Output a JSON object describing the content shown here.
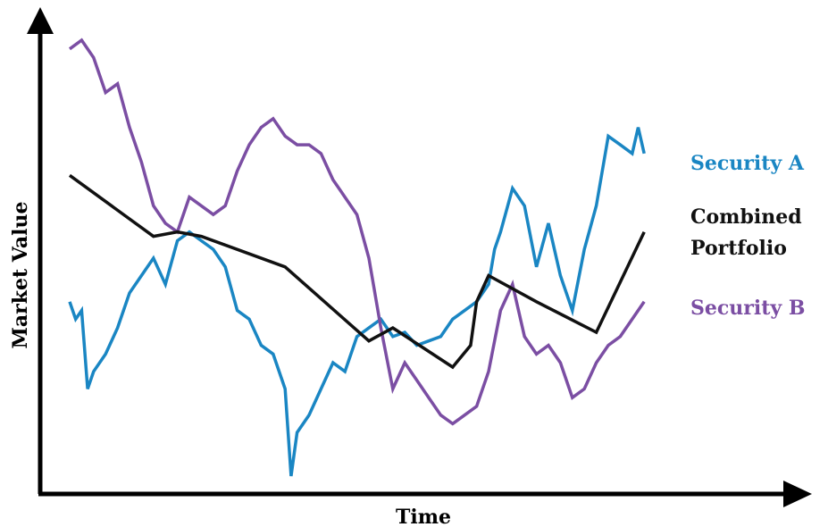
{
  "chart_data": {
    "type": "line",
    "title": "",
    "xlabel": "Time",
    "ylabel": "Market Value",
    "ticks": "none",
    "grid": false,
    "legend_placement": "right",
    "xlim": [
      0,
      100
    ],
    "ylim": [
      0,
      100
    ],
    "series": [
      {
        "name": "Security A",
        "color": "#1a86c3",
        "points": [
          [
            0,
            40
          ],
          [
            1,
            36
          ],
          [
            2,
            38
          ],
          [
            3,
            20
          ],
          [
            4,
            24
          ],
          [
            6,
            28
          ],
          [
            8,
            34
          ],
          [
            10,
            42
          ],
          [
            12,
            46
          ],
          [
            14,
            50
          ],
          [
            16,
            44
          ],
          [
            18,
            54
          ],
          [
            20,
            56
          ],
          [
            22,
            54
          ],
          [
            24,
            52
          ],
          [
            26,
            48
          ],
          [
            28,
            38
          ],
          [
            30,
            36
          ],
          [
            32,
            30
          ],
          [
            34,
            28
          ],
          [
            36,
            20
          ],
          [
            37,
            0
          ],
          [
            38,
            10
          ],
          [
            40,
            14
          ],
          [
            42,
            20
          ],
          [
            44,
            26
          ],
          [
            46,
            24
          ],
          [
            48,
            32
          ],
          [
            50,
            34
          ],
          [
            52,
            36
          ],
          [
            54,
            32
          ],
          [
            56,
            33
          ],
          [
            58,
            30
          ],
          [
            60,
            31
          ],
          [
            62,
            32
          ],
          [
            64,
            36
          ],
          [
            66,
            38
          ],
          [
            68,
            40
          ],
          [
            70,
            44
          ],
          [
            71,
            52
          ],
          [
            72,
            56
          ],
          [
            74,
            66
          ],
          [
            76,
            62
          ],
          [
            78,
            48
          ],
          [
            80,
            58
          ],
          [
            82,
            46
          ],
          [
            84,
            38
          ],
          [
            86,
            52
          ],
          [
            88,
            62
          ],
          [
            90,
            78
          ],
          [
            92,
            76
          ],
          [
            94,
            74
          ],
          [
            95,
            80
          ],
          [
            96,
            74
          ]
        ]
      },
      {
        "name": "Security B",
        "color": "#7b4ea3",
        "points": [
          [
            0,
            98
          ],
          [
            2,
            100
          ],
          [
            4,
            96
          ],
          [
            6,
            88
          ],
          [
            8,
            90
          ],
          [
            10,
            80
          ],
          [
            12,
            72
          ],
          [
            14,
            62
          ],
          [
            16,
            58
          ],
          [
            18,
            56
          ],
          [
            20,
            64
          ],
          [
            22,
            62
          ],
          [
            24,
            60
          ],
          [
            26,
            62
          ],
          [
            28,
            70
          ],
          [
            30,
            76
          ],
          [
            32,
            80
          ],
          [
            34,
            82
          ],
          [
            36,
            78
          ],
          [
            38,
            76
          ],
          [
            40,
            76
          ],
          [
            42,
            74
          ],
          [
            44,
            68
          ],
          [
            46,
            64
          ],
          [
            48,
            60
          ],
          [
            50,
            50
          ],
          [
            52,
            34
          ],
          [
            54,
            20
          ],
          [
            56,
            26
          ],
          [
            58,
            22
          ],
          [
            60,
            18
          ],
          [
            62,
            14
          ],
          [
            64,
            12
          ],
          [
            66,
            14
          ],
          [
            68,
            16
          ],
          [
            70,
            24
          ],
          [
            72,
            38
          ],
          [
            74,
            44
          ],
          [
            76,
            32
          ],
          [
            78,
            28
          ],
          [
            80,
            30
          ],
          [
            82,
            26
          ],
          [
            84,
            18
          ],
          [
            86,
            20
          ],
          [
            88,
            26
          ],
          [
            90,
            30
          ],
          [
            92,
            32
          ],
          [
            94,
            36
          ],
          [
            96,
            40
          ]
        ]
      },
      {
        "name": "Combined Portfolio",
        "color": "#111111",
        "points": [
          [
            0,
            69
          ],
          [
            14,
            55
          ],
          [
            18,
            56
          ],
          [
            22,
            55
          ],
          [
            36,
            48
          ],
          [
            50,
            31
          ],
          [
            54,
            34
          ],
          [
            64,
            25
          ],
          [
            67,
            30
          ],
          [
            68,
            40
          ],
          [
            70,
            46
          ],
          [
            78,
            40
          ],
          [
            88,
            33
          ],
          [
            96,
            56
          ]
        ]
      }
    ]
  },
  "legend": {
    "security_a": "Security A",
    "combined_line1": "Combined",
    "combined_line2": "Portfolio",
    "security_b": "Security B"
  }
}
